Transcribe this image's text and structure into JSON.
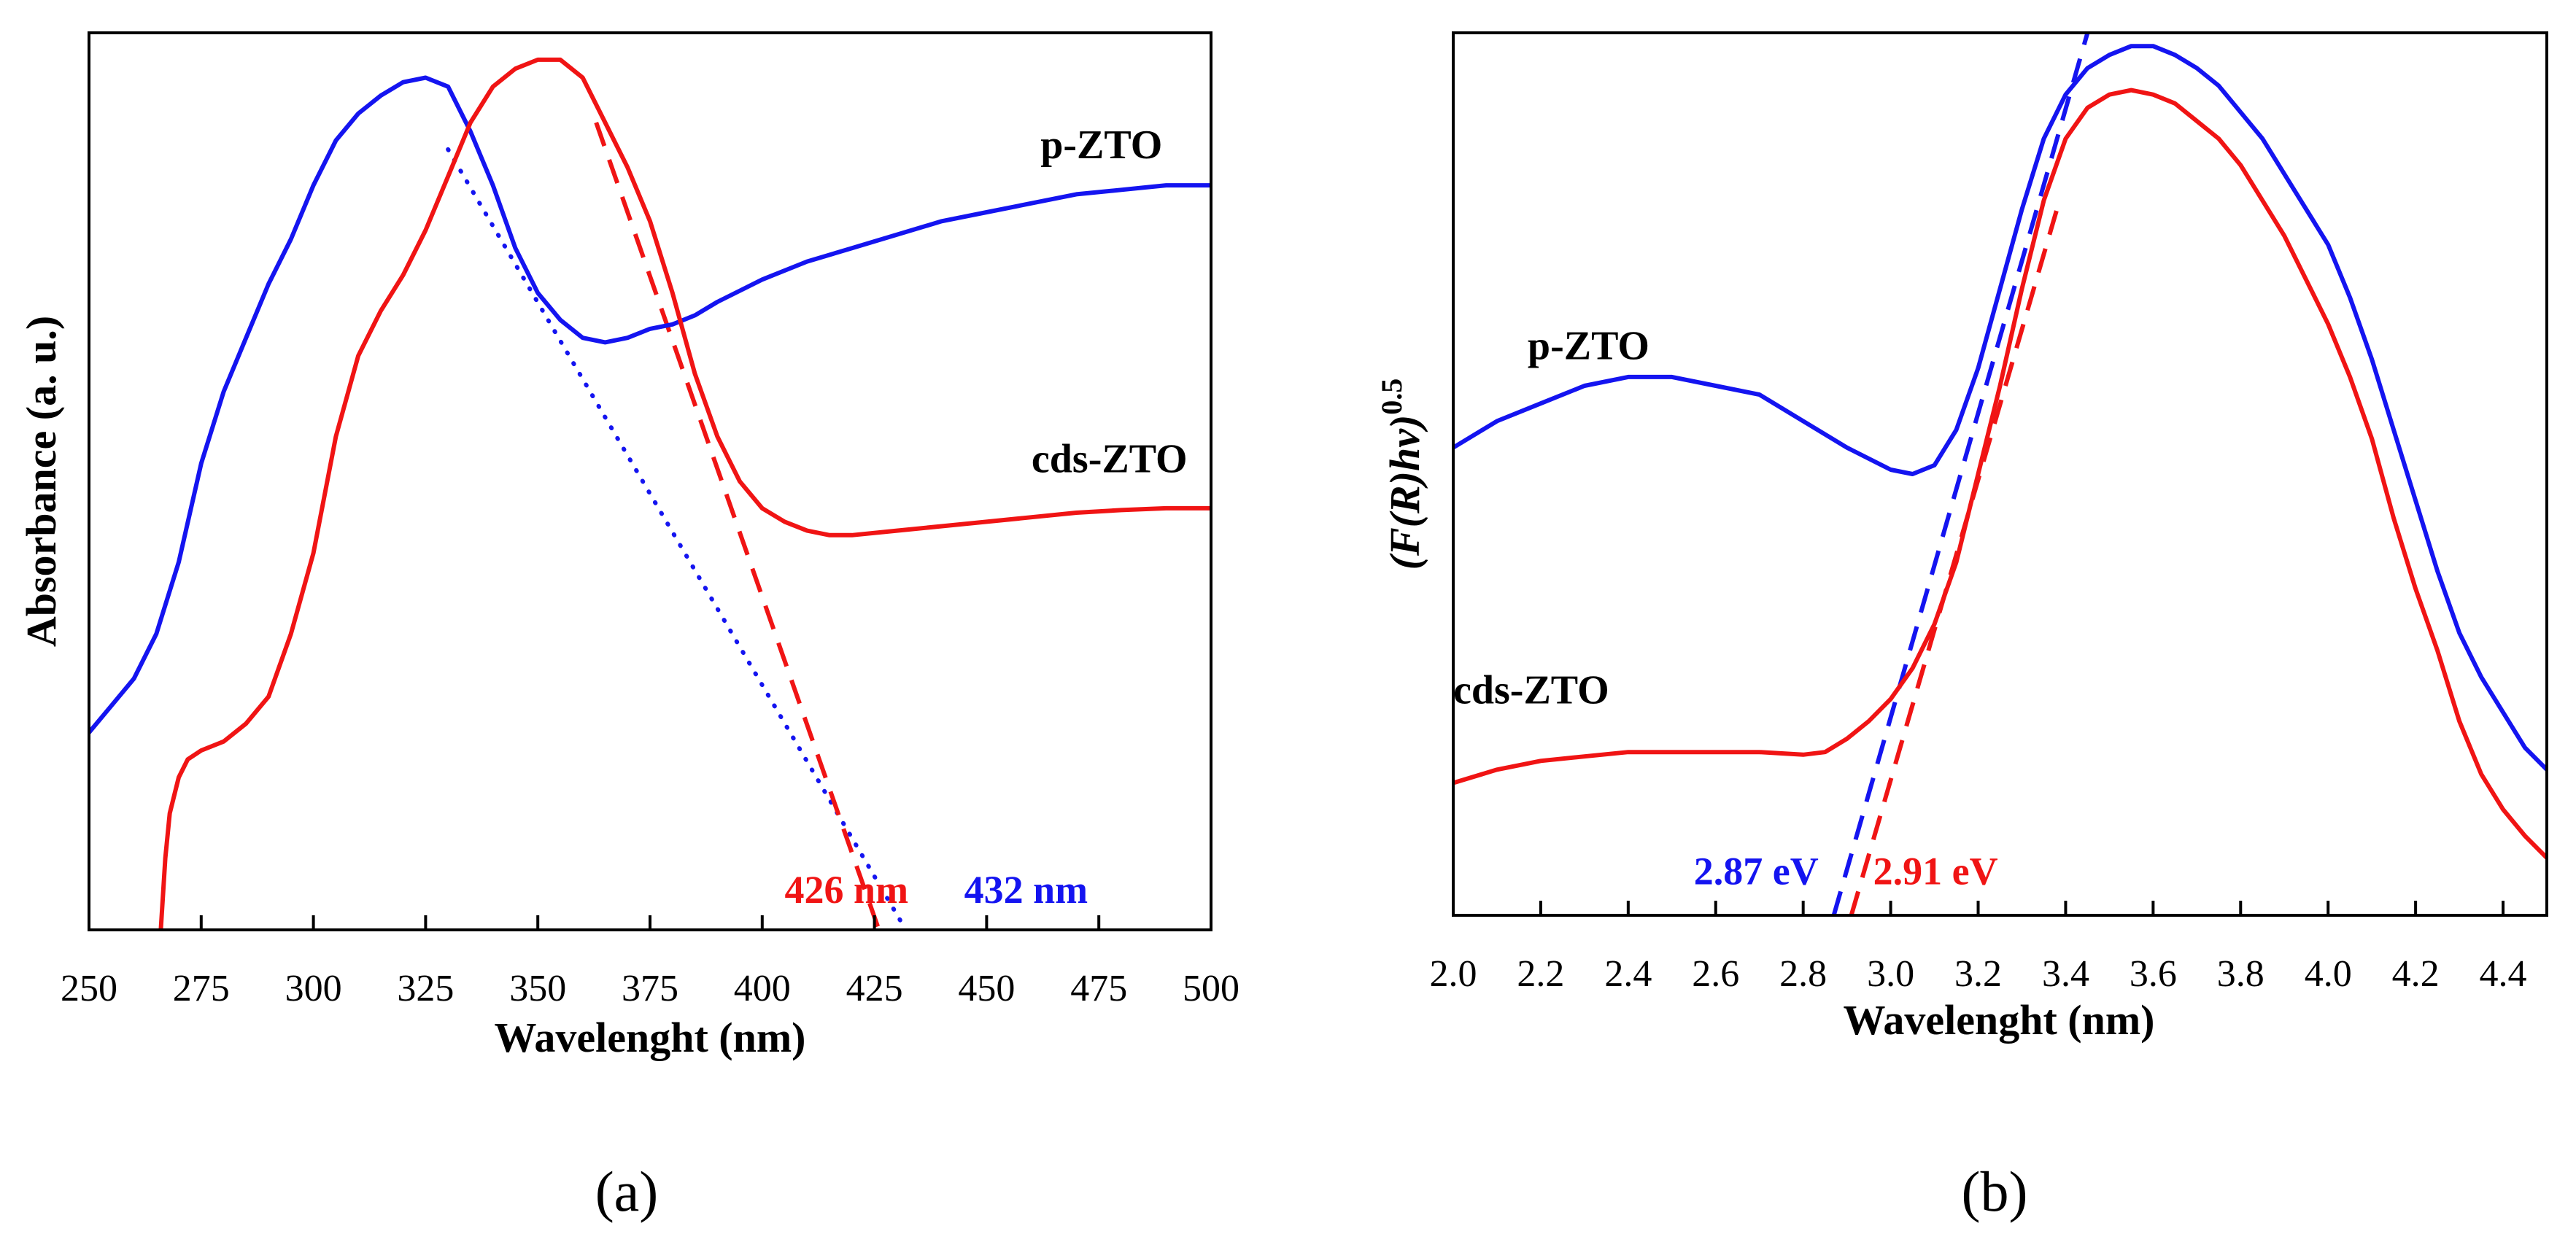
{
  "colors": {
    "blue": "#1414f0",
    "red": "#f01414",
    "axis": "#000000"
  },
  "chart_data": [
    {
      "id": "a",
      "type": "line",
      "panel_label": "(a)",
      "title": "",
      "xlabel": "Wavelenght (nm)",
      "ylabel": "Absorbance (a. u.)",
      "xlim": [
        250,
        500
      ],
      "ylim": [
        0,
        1
      ],
      "x_ticks": [
        250,
        275,
        300,
        325,
        350,
        375,
        400,
        425,
        450,
        475,
        500
      ],
      "y_ticks": [],
      "grid": false,
      "series": [
        {
          "name": "p-ZTO",
          "color": "#1414f0",
          "x": [
            250,
            255,
            260,
            265,
            270,
            275,
            280,
            285,
            290,
            295,
            300,
            305,
            310,
            315,
            320,
            325,
            330,
            335,
            340,
            345,
            350,
            355,
            360,
            365,
            370,
            375,
            380,
            385,
            390,
            400,
            410,
            420,
            430,
            440,
            450,
            460,
            470,
            480,
            490,
            500
          ],
          "y": [
            0.22,
            0.25,
            0.28,
            0.33,
            0.41,
            0.52,
            0.6,
            0.66,
            0.72,
            0.77,
            0.83,
            0.88,
            0.91,
            0.93,
            0.945,
            0.95,
            0.94,
            0.89,
            0.83,
            0.76,
            0.71,
            0.68,
            0.66,
            0.655,
            0.66,
            0.67,
            0.675,
            0.685,
            0.7,
            0.725,
            0.745,
            0.76,
            0.775,
            0.79,
            0.8,
            0.81,
            0.82,
            0.825,
            0.83,
            0.83
          ]
        },
        {
          "name": "cds-ZTO",
          "color": "#f01414",
          "x": [
            266,
            267,
            268,
            270,
            272,
            275,
            280,
            285,
            290,
            295,
            300,
            305,
            310,
            315,
            320,
            325,
            330,
            335,
            340,
            345,
            350,
            355,
            360,
            365,
            370,
            375,
            380,
            385,
            390,
            395,
            400,
            405,
            410,
            415,
            420,
            430,
            440,
            450,
            460,
            470,
            480,
            490,
            500
          ],
          "y": [
            0.0,
            0.08,
            0.13,
            0.17,
            0.19,
            0.2,
            0.21,
            0.23,
            0.26,
            0.33,
            0.42,
            0.55,
            0.64,
            0.69,
            0.73,
            0.78,
            0.84,
            0.9,
            0.94,
            0.96,
            0.97,
            0.97,
            0.95,
            0.9,
            0.85,
            0.79,
            0.71,
            0.62,
            0.55,
            0.5,
            0.47,
            0.455,
            0.445,
            0.44,
            0.44,
            0.445,
            0.45,
            0.455,
            0.46,
            0.465,
            0.468,
            0.47,
            0.47
          ]
        }
      ],
      "extrapolations": [
        {
          "color": "#1414f0",
          "style": "dotted",
          "x": [
            330,
            432
          ],
          "y": [
            0.87,
            0.0
          ]
        },
        {
          "color": "#f01414",
          "style": "dashed",
          "x": [
            363,
            426
          ],
          "y": [
            0.9,
            0.0
          ]
        }
      ],
      "annotations": [
        {
          "text": "p-ZTO",
          "color": "#000000",
          "x": 462,
          "y": 0.86
        },
        {
          "text": "cds-ZTO",
          "color": "#000000",
          "x": 460,
          "y": 0.51
        },
        {
          "text": "426 nm",
          "color": "#f01414",
          "x": 405,
          "y": 0.03
        },
        {
          "text": "432 nm",
          "color": "#1414f0",
          "x": 445,
          "y": 0.03
        }
      ]
    },
    {
      "id": "b",
      "type": "line",
      "panel_label": "(b)",
      "title": "",
      "xlabel": "Wavelenght (nm)",
      "ylabel": "(F(R)hv)^0.5",
      "ylabel_parts": {
        "main": "(F(R)hν)",
        "exponent": "0.5"
      },
      "xlim": [
        2.0,
        4.5
      ],
      "ylim": [
        0,
        1
      ],
      "x_ticks": [
        "2.0",
        "2.2",
        "2.4",
        "2.6",
        "2.8",
        "3.0",
        "3.2",
        "3.4",
        "3.6",
        "3.8",
        "4.0",
        "4.2",
        "4.4"
      ],
      "y_ticks": [],
      "grid": false,
      "series": [
        {
          "name": "p-ZTO",
          "color": "#1414f0",
          "x": [
            2.0,
            2.1,
            2.2,
            2.3,
            2.4,
            2.5,
            2.6,
            2.7,
            2.8,
            2.9,
            3.0,
            3.05,
            3.1,
            3.15,
            3.2,
            3.25,
            3.3,
            3.35,
            3.4,
            3.45,
            3.5,
            3.55,
            3.6,
            3.65,
            3.7,
            3.75,
            3.8,
            3.85,
            3.9,
            3.95,
            4.0,
            4.05,
            4.1,
            4.15,
            4.2,
            4.25,
            4.3,
            4.35,
            4.4,
            4.45,
            4.5
          ],
          "y": [
            0.53,
            0.56,
            0.58,
            0.6,
            0.61,
            0.61,
            0.6,
            0.59,
            0.56,
            0.53,
            0.505,
            0.5,
            0.51,
            0.55,
            0.62,
            0.71,
            0.8,
            0.88,
            0.93,
            0.96,
            0.975,
            0.985,
            0.985,
            0.975,
            0.96,
            0.94,
            0.91,
            0.88,
            0.84,
            0.8,
            0.76,
            0.7,
            0.63,
            0.55,
            0.47,
            0.39,
            0.32,
            0.27,
            0.23,
            0.19,
            0.165
          ]
        },
        {
          "name": "cds-ZTO",
          "color": "#f01414",
          "x": [
            2.0,
            2.1,
            2.2,
            2.3,
            2.4,
            2.5,
            2.6,
            2.7,
            2.8,
            2.85,
            2.9,
            2.95,
            3.0,
            3.05,
            3.1,
            3.15,
            3.2,
            3.25,
            3.3,
            3.35,
            3.4,
            3.45,
            3.5,
            3.55,
            3.6,
            3.65,
            3.7,
            3.75,
            3.8,
            3.85,
            3.9,
            3.95,
            4.0,
            4.05,
            4.1,
            4.15,
            4.2,
            4.25,
            4.3,
            4.35,
            4.4,
            4.45,
            4.5
          ],
          "y": [
            0.15,
            0.165,
            0.175,
            0.18,
            0.185,
            0.185,
            0.185,
            0.185,
            0.182,
            0.185,
            0.2,
            0.22,
            0.245,
            0.28,
            0.33,
            0.4,
            0.5,
            0.6,
            0.71,
            0.81,
            0.88,
            0.915,
            0.93,
            0.935,
            0.93,
            0.92,
            0.9,
            0.88,
            0.85,
            0.81,
            0.77,
            0.72,
            0.67,
            0.61,
            0.54,
            0.45,
            0.37,
            0.3,
            0.22,
            0.16,
            0.12,
            0.09,
            0.065
          ]
        }
      ],
      "extrapolations": [
        {
          "color": "#1414f0",
          "style": "dashed",
          "x": [
            2.87,
            3.45
          ],
          "y": [
            0.0,
            1.0
          ]
        },
        {
          "color": "#f01414",
          "style": "dashed",
          "x": [
            2.91,
            3.38
          ],
          "y": [
            0.0,
            0.8
          ]
        }
      ],
      "annotations": [
        {
          "text": "p-ZTO",
          "color": "#000000",
          "x": 2.17,
          "y": 0.63
        },
        {
          "text": "cds-ZTO",
          "color": "#000000",
          "x": 2.0,
          "y": 0.24
        },
        {
          "text": "2.87 eV",
          "color": "#1414f0",
          "x": 2.55,
          "y": 0.035
        },
        {
          "text": "2.91 eV",
          "color": "#f01414",
          "x": 2.96,
          "y": 0.035
        }
      ]
    }
  ]
}
